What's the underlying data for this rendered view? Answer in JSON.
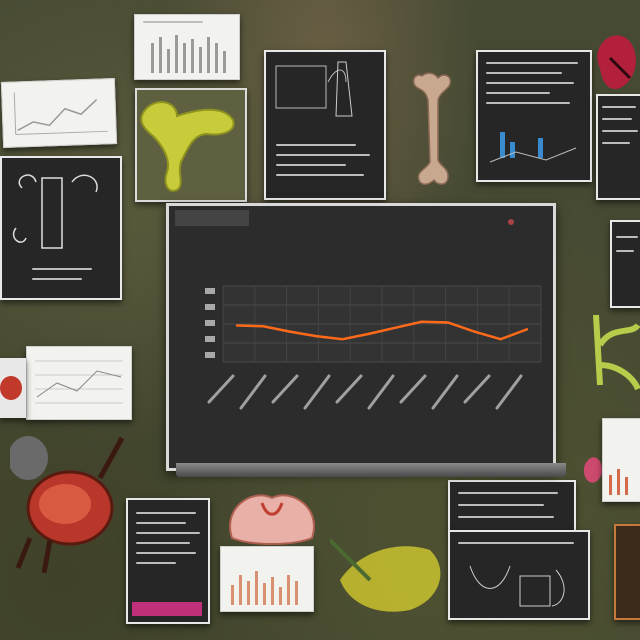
{
  "chart": {
    "title": "",
    "x_caption": "",
    "line_color": "#ff6a1a"
  },
  "chart_data": {
    "type": "line",
    "title": "",
    "xlabel": "",
    "ylabel": "",
    "categories": [
      "1",
      "2",
      "3",
      "4",
      "5",
      "6",
      "7",
      "8",
      "9",
      "10",
      "11",
      "12"
    ],
    "series": [
      {
        "values": [
          48,
          47,
          40,
          34,
          30,
          37,
          45,
          53,
          52,
          40,
          30,
          43
        ]
      }
    ],
    "ylim": [
      0,
      100
    ],
    "grid": true
  },
  "colors": {
    "background": "#474a33",
    "panel": "#262626",
    "accent": "#ff6a1a"
  },
  "icons": [
    "bone-icon",
    "pelvis-icon",
    "specimen-icon",
    "organ-icon",
    "flower-icon",
    "plant-icon"
  ]
}
